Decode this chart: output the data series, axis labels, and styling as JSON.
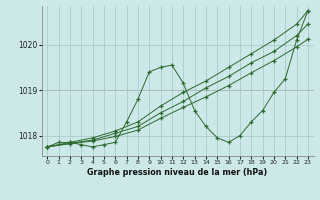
{
  "bg_color": "#cce8e8",
  "grid_color": "#aacccc",
  "line_color": "#2d6a2d",
  "xlabel": "Graphe pression niveau de la mer (hPa)",
  "ylabel_ticks": [
    1018,
    1019,
    1020
  ],
  "xlim": [
    -0.5,
    23.5
  ],
  "ylim": [
    1017.55,
    1020.85
  ],
  "xticks": [
    0,
    1,
    2,
    3,
    4,
    5,
    6,
    7,
    8,
    9,
    10,
    11,
    12,
    13,
    14,
    15,
    16,
    17,
    18,
    19,
    20,
    21,
    22,
    23
  ],
  "red_hlines": [
    1019
  ],
  "series": [
    {
      "x": [
        0,
        1,
        2,
        3,
        4,
        5,
        6,
        7,
        8,
        9,
        10,
        11,
        12,
        13,
        14,
        15,
        16,
        17,
        18,
        19,
        20,
        21,
        22,
        23
      ],
      "y": [
        1017.75,
        1017.85,
        1017.85,
        1017.8,
        1017.75,
        1017.8,
        1017.85,
        1018.3,
        1018.8,
        1019.4,
        1019.5,
        1019.55,
        1019.15,
        1018.55,
        1018.2,
        1017.95,
        1017.85,
        1018.0,
        1018.3,
        1018.55,
        1018.95,
        1019.25,
        1020.1,
        1020.75
      ]
    },
    {
      "x": [
        0,
        2,
        4,
        6,
        8,
        10,
        12,
        14,
        16,
        18,
        20,
        22,
        23
      ],
      "y": [
        1017.75,
        1017.82,
        1017.88,
        1017.98,
        1018.12,
        1018.38,
        1018.62,
        1018.85,
        1019.1,
        1019.38,
        1019.65,
        1019.95,
        1020.12
      ]
    },
    {
      "x": [
        0,
        2,
        4,
        6,
        8,
        10,
        12,
        14,
        16,
        18,
        20,
        22,
        23
      ],
      "y": [
        1017.75,
        1017.83,
        1017.9,
        1018.05,
        1018.2,
        1018.5,
        1018.75,
        1019.05,
        1019.3,
        1019.6,
        1019.85,
        1020.2,
        1020.45
      ]
    },
    {
      "x": [
        0,
        2,
        4,
        6,
        8,
        10,
        12,
        14,
        16,
        18,
        20,
        22,
        23
      ],
      "y": [
        1017.75,
        1017.85,
        1017.95,
        1018.1,
        1018.3,
        1018.65,
        1018.95,
        1019.2,
        1019.5,
        1019.8,
        1020.1,
        1020.45,
        1020.75
      ]
    }
  ]
}
